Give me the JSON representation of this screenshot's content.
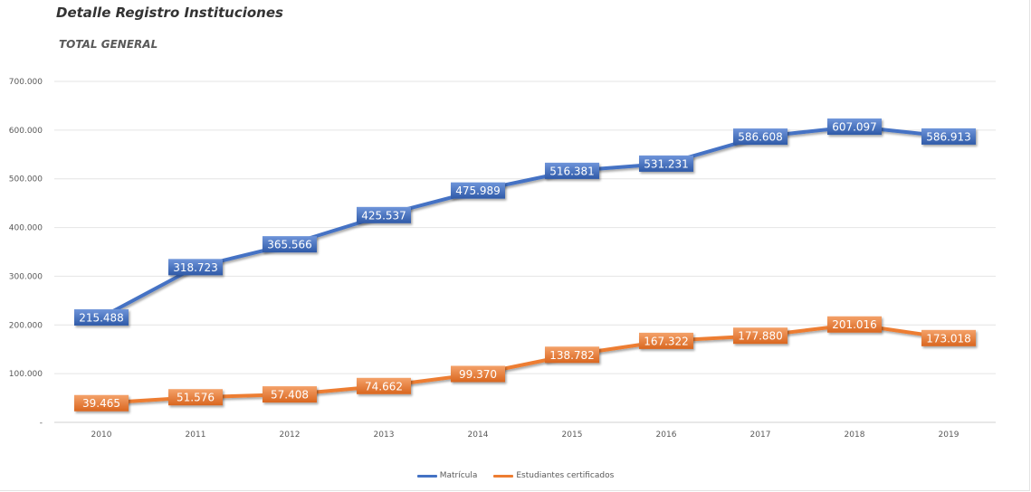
{
  "title": "Detalle Registro Instituciones",
  "subtitle": "TOTAL GENERAL",
  "chart_data": {
    "type": "line",
    "categories": [
      "2010",
      "2011",
      "2012",
      "2013",
      "2014",
      "2015",
      "2016",
      "2017",
      "2018",
      "2019"
    ],
    "series": [
      {
        "name": "Matrícula",
        "color": "#4472c4",
        "values": [
          215488,
          318723,
          365566,
          425537,
          475989,
          516381,
          531231,
          586608,
          607097,
          586913
        ],
        "labels": [
          "215.488",
          "318.723",
          "365.566",
          "425.537",
          "475.989",
          "516.381",
          "531.231",
          "586.608",
          "607.097",
          "586.913"
        ]
      },
      {
        "name": "Estudiantes certificados",
        "color": "#ed7d31",
        "values": [
          39465,
          51576,
          57408,
          74662,
          99370,
          138782,
          167322,
          177880,
          201016,
          173018
        ],
        "labels": [
          "39.465",
          "51.576",
          "57.408",
          "74.662",
          "99.370",
          "138.782",
          "167.322",
          "177.880",
          "201.016",
          "173.018"
        ]
      }
    ],
    "ylim": [
      0,
      700000
    ],
    "yticks": [
      0,
      100000,
      200000,
      300000,
      400000,
      500000,
      600000,
      700000
    ],
    "ytick_labels": [
      "-",
      "100.000",
      "200.000",
      "300.000",
      "400.000",
      "500.000",
      "600.000",
      "700.000"
    ],
    "grid": true,
    "legend_position": "bottom"
  }
}
